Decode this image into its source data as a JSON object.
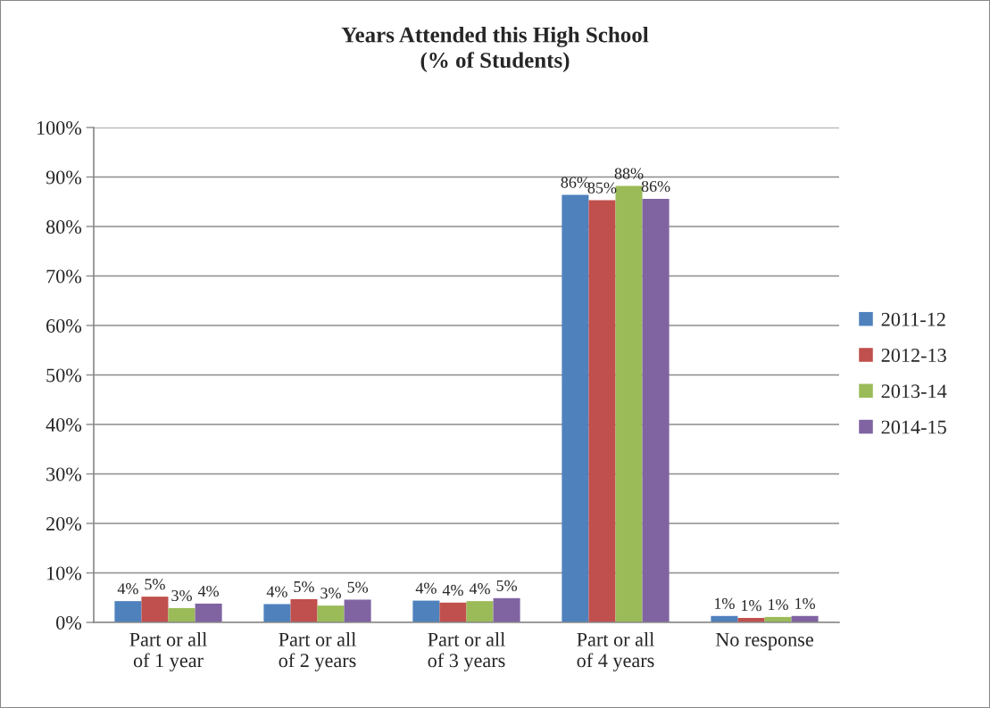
{
  "chart_data": {
    "type": "bar",
    "title": "Years Attended this High School\n(% of Students)",
    "categories": [
      "Part or all\nof 1 year",
      "Part or all\nof 2 years",
      "Part or all\nof 3 years",
      "Part or all\nof 4 years",
      "No response"
    ],
    "series": [
      {
        "name": "2011-12",
        "color": "#4f81bd",
        "values": [
          4.3,
          3.7,
          4.4,
          86.4,
          1.3
        ],
        "value_labels": [
          "4%",
          "4%",
          "4%",
          "86%",
          "1%"
        ]
      },
      {
        "name": "2012-13",
        "color": "#c0504d",
        "values": [
          5.2,
          4.7,
          4.0,
          85.3,
          0.9
        ],
        "value_labels": [
          "5%",
          "5%",
          "4%",
          "85%",
          "1%"
        ]
      },
      {
        "name": "2013-14",
        "color": "#9bbb59",
        "values": [
          2.9,
          3.4,
          4.3,
          88.2,
          1.1
        ],
        "value_labels": [
          "3%",
          "3%",
          "4%",
          "88%",
          "1%"
        ]
      },
      {
        "name": "2014-15",
        "color": "#8064a2",
        "values": [
          3.8,
          4.6,
          4.9,
          85.6,
          1.3
        ],
        "value_labels": [
          "4%",
          "5%",
          "5%",
          "86%",
          "1%"
        ]
      }
    ],
    "ylim": [
      0,
      100
    ],
    "yticks": [
      {
        "value": 0,
        "label": "0%"
      },
      {
        "value": 10,
        "label": "10%"
      },
      {
        "value": 20,
        "label": "20%"
      },
      {
        "value": 30,
        "label": "30%"
      },
      {
        "value": 40,
        "label": "40%"
      },
      {
        "value": 50,
        "label": "50%"
      },
      {
        "value": 60,
        "label": "60%"
      },
      {
        "value": 70,
        "label": "70%"
      },
      {
        "value": 80,
        "label": "80%"
      },
      {
        "value": 90,
        "label": "90%"
      },
      {
        "value": 100,
        "label": "100%"
      }
    ],
    "grid": "y",
    "legend": "right"
  }
}
